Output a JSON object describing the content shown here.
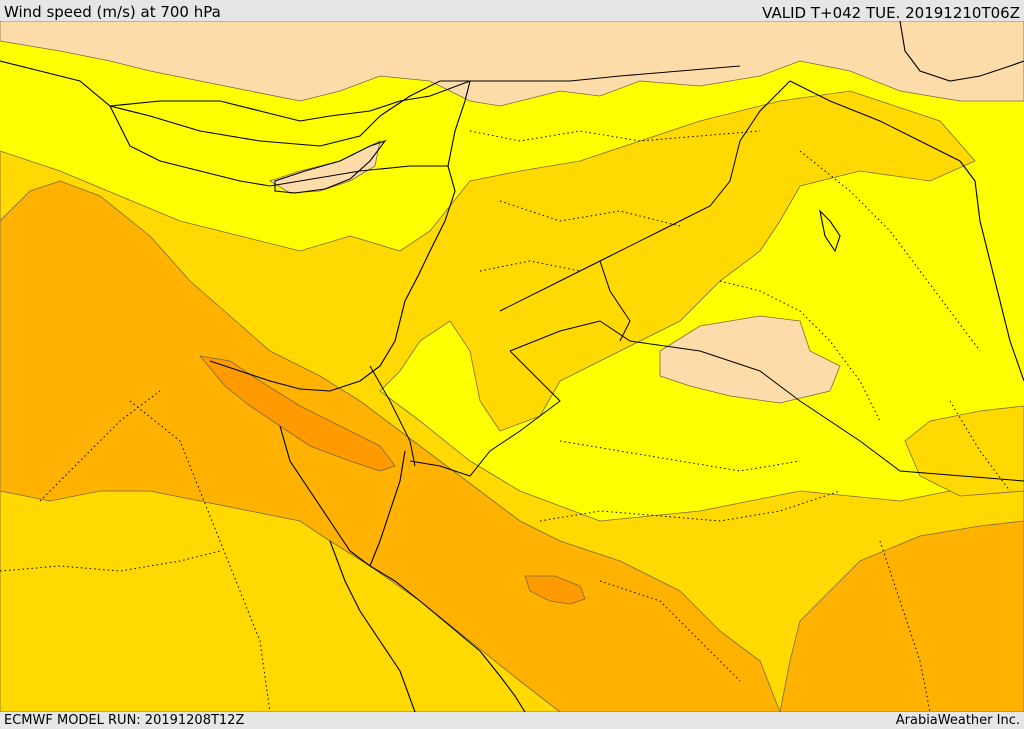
{
  "header": {
    "title": "Wind speed (m/s) at 700 hPa",
    "valid": "VALID T+042 TUE. 20191210T06Z"
  },
  "footer": {
    "model_run": "ECMWF MODEL RUN: 20191208T12Z",
    "credit": "ArabiaWeather Inc."
  },
  "colors": {
    "sea": "#ffffff",
    "lightest": "#fddcaa",
    "yellow": "#ffff00",
    "gold": "#ffd900",
    "orange": "#ffb200",
    "dark_orange": "#ff9a00",
    "frame": "#e6e6e6"
  }
}
